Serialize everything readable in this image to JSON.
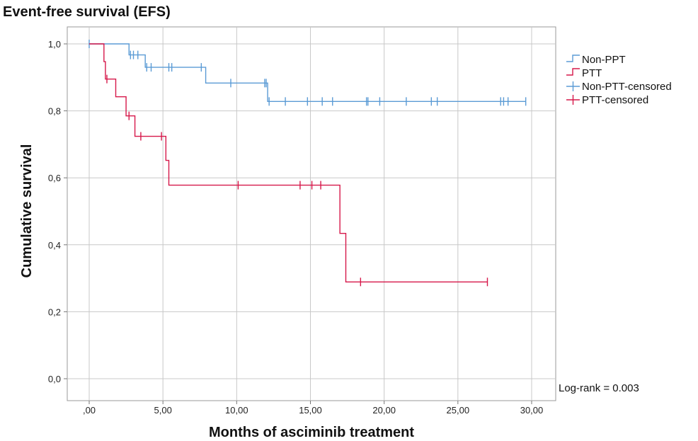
{
  "chart_data": {
    "type": "line",
    "title": "Event-free survival (EFS)",
    "xlabel": "Months of asciminib treatment",
    "ylabel": "Cumulative survival",
    "xlim": [
      0,
      30
    ],
    "ylim": [
      0,
      1
    ],
    "xticks": [
      ",00",
      "5,00",
      "10,00",
      "15,00",
      "20,00",
      "25,00",
      "30,00"
    ],
    "yticks": [
      "0,0",
      "0,2",
      "0,4",
      "0,6",
      "0,8",
      "1,0"
    ],
    "grid": true,
    "legend_position": "right",
    "annotation": "Log-rank = 0.003",
    "legend": [
      "Non-PPT",
      "PTT",
      "Non-PTT-censored",
      "PTT-censored"
    ],
    "series": [
      {
        "name": "Non-PPT",
        "color": "#5b9bd5",
        "steps": [
          [
            0,
            1.0
          ],
          [
            2.7,
            0.967
          ],
          [
            3.8,
            0.93
          ],
          [
            7.9,
            0.883
          ],
          [
            12.1,
            0.828
          ],
          [
            29.6,
            0.828
          ]
        ],
        "censored": [
          0,
          2.8,
          3.0,
          3.3,
          3.9,
          4.2,
          5.4,
          5.6,
          7.6,
          9.6,
          11.9,
          12.0,
          12.2,
          13.3,
          14.8,
          15.8,
          16.5,
          18.8,
          18.9,
          19.7,
          21.5,
          23.2,
          23.6,
          27.9,
          28.1,
          28.4,
          29.6
        ]
      },
      {
        "name": "PTT",
        "color": "#d6184a",
        "steps": [
          [
            0,
            1.0
          ],
          [
            1.0,
            0.947
          ],
          [
            1.1,
            0.895
          ],
          [
            1.8,
            0.842
          ],
          [
            2.5,
            0.785
          ],
          [
            3.1,
            0.724
          ],
          [
            5.2,
            0.652
          ],
          [
            5.4,
            0.578
          ],
          [
            17.0,
            0.434
          ],
          [
            17.4,
            0.289
          ],
          [
            27.0,
            0.289
          ]
        ],
        "censored": [
          1.2,
          2.7,
          3.5,
          4.9,
          10.1,
          14.3,
          15.1,
          15.7,
          18.4,
          27.0
        ]
      }
    ]
  }
}
